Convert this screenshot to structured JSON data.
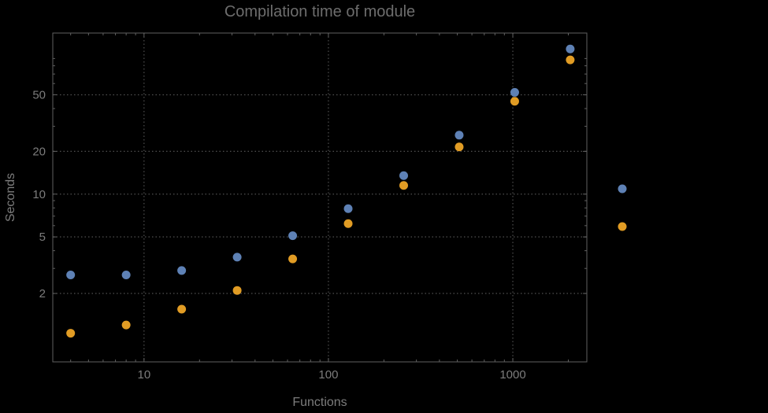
{
  "chart": {
    "title": "Compilation time of module",
    "xlabel": "Functions",
    "ylabel": "Seconds"
  },
  "chart_data": {
    "type": "scatter",
    "title": "Compilation time of module",
    "xlabel": "Functions",
    "ylabel": "Seconds",
    "x_scale": "log",
    "y_scale": "log",
    "grid": "dotted",
    "xlim": [
      3.2,
      2520
    ],
    "ylim": [
      0.66,
      136
    ],
    "x": [
      4,
      8,
      16,
      32,
      64,
      128,
      256,
      512,
      1024,
      2048
    ],
    "series": [
      {
        "name": "series-1",
        "color": "#5e81b5",
        "values": [
          2.7,
          2.7,
          2.9,
          3.6,
          5.1,
          7.9,
          13.5,
          26,
          52,
          105
        ]
      },
      {
        "name": "series-2",
        "color": "#e19c24",
        "values": [
          1.05,
          1.2,
          1.55,
          2.1,
          3.5,
          6.2,
          11.5,
          21.5,
          45,
          88
        ]
      }
    ],
    "xticks": [
      {
        "value": 10,
        "label": "10"
      },
      {
        "value": 100,
        "label": "100"
      },
      {
        "value": 1000,
        "label": "1000"
      }
    ],
    "yticks": [
      {
        "value": 2,
        "label": "2"
      },
      {
        "value": 5,
        "label": "5"
      },
      {
        "value": 10,
        "label": "10"
      },
      {
        "value": 20,
        "label": "20"
      },
      {
        "value": 50,
        "label": "50"
      }
    ],
    "legend_position": "right",
    "legend": [
      {
        "series": "series-1",
        "color": "#5e81b5",
        "label": ""
      },
      {
        "series": "series-2",
        "color": "#e19c24",
        "label": ""
      }
    ]
  },
  "colors": {
    "background": "#000000",
    "frame": "#606060",
    "grid": "#4f4f4f",
    "title": "#6d6d6d",
    "axis_label": "#7c7c7c",
    "tick_label": "#7c7c7c"
  }
}
